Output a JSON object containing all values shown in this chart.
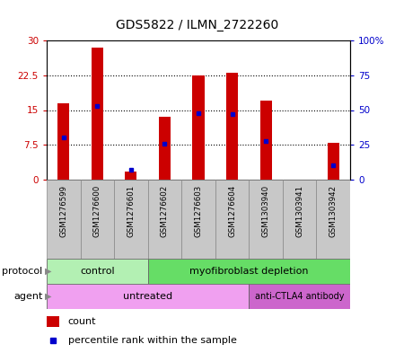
{
  "title": "GDS5822 / ILMN_2722260",
  "samples": [
    "GSM1276599",
    "GSM1276600",
    "GSM1276601",
    "GSM1276602",
    "GSM1276603",
    "GSM1276604",
    "GSM1303940",
    "GSM1303941",
    "GSM1303942"
  ],
  "counts": [
    16.5,
    28.5,
    1.8,
    13.5,
    22.5,
    23.0,
    17.0,
    0.0,
    8.0
  ],
  "percentiles": [
    30,
    53,
    7,
    26,
    48,
    47,
    28,
    0,
    10
  ],
  "ylim_left": [
    0,
    30
  ],
  "ylim_right": [
    0,
    100
  ],
  "yticks_left": [
    0,
    7.5,
    15,
    22.5,
    30
  ],
  "yticks_right": [
    0,
    25,
    50,
    75,
    100
  ],
  "ytick_labels_left": [
    "0",
    "7.5",
    "15",
    "22.5",
    "30"
  ],
  "ytick_labels_right": [
    "0",
    "25",
    "50",
    "75",
    "100%"
  ],
  "bar_color": "#cc0000",
  "dot_color": "#0000cc",
  "bar_width": 0.35,
  "protocol_groups": [
    {
      "label": "control",
      "start": 0,
      "end": 3,
      "color": "#b3f0b3"
    },
    {
      "label": "myofibroblast depletion",
      "start": 3,
      "end": 9,
      "color": "#66dd66"
    }
  ],
  "agent_groups": [
    {
      "label": "untreated",
      "start": 0,
      "end": 6,
      "color": "#f0a0f0"
    },
    {
      "label": "anti-CTLA4 antibody",
      "start": 6,
      "end": 9,
      "color": "#cc66cc"
    }
  ],
  "legend_count_label": "count",
  "legend_percentile_label": "percentile rank within the sample",
  "grid_color": "black",
  "tick_color_left": "#cc0000",
  "tick_color_right": "#0000cc",
  "bg_plot": "#ffffff",
  "bg_label": "#c8c8c8"
}
